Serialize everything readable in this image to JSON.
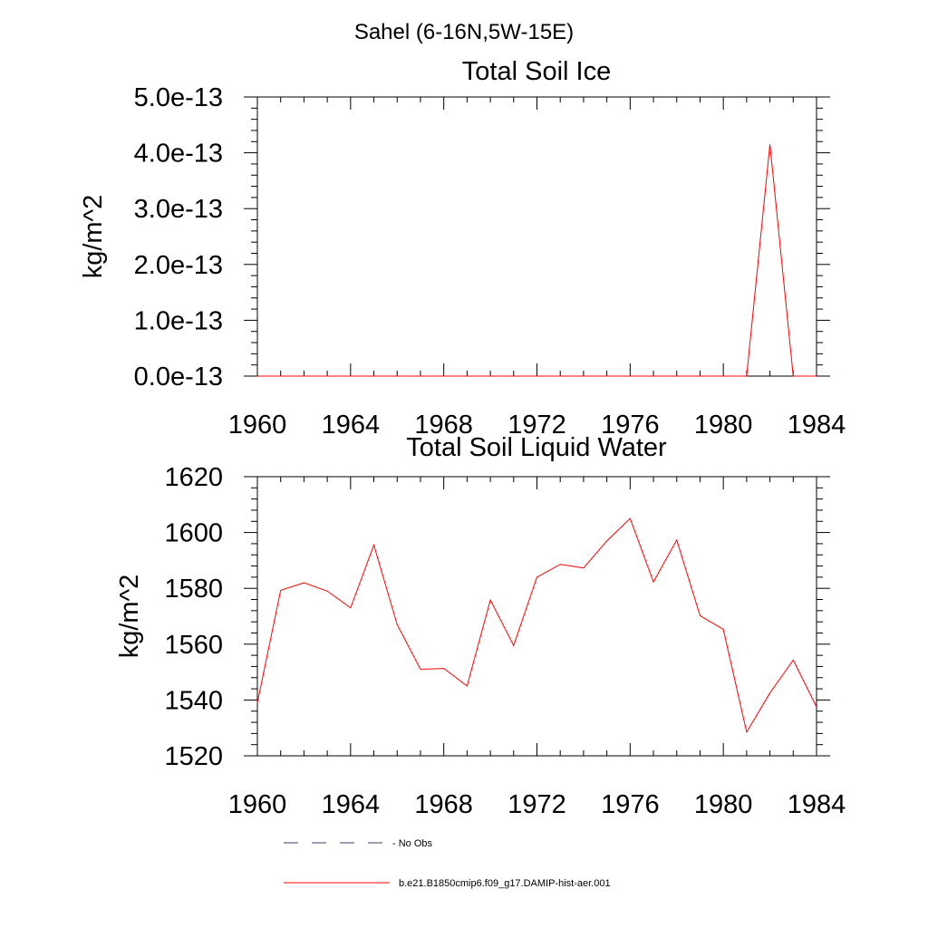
{
  "figure": {
    "title": "Sahel (6-16N,5W-15E)"
  },
  "legend": {
    "items": [
      {
        "label": "- No Obs",
        "color": "#3b3b6e",
        "style": "dashed"
      },
      {
        "label": "b.e21.B1850cmip6.f09_g17.DAMIP-hist-aer.001",
        "color": "#ff0000",
        "style": "solid"
      }
    ]
  },
  "chart_data": [
    {
      "type": "line",
      "title": "Total Soil Ice",
      "ylabel": "kg/m^2",
      "xlabel": "",
      "xlim": [
        1960,
        1984
      ],
      "ylim": [
        0,
        5e-13
      ],
      "xticks": [
        1960,
        1964,
        1968,
        1972,
        1976,
        1980,
        1984
      ],
      "yticks": [
        0,
        1e-13,
        2e-13,
        3e-13,
        4e-13,
        5e-13
      ],
      "ytick_labels": [
        "0.0e-13",
        "1.0e-13",
        "2.0e-13",
        "3.0e-13",
        "4.0e-13",
        "5.0e-13"
      ],
      "grid": false,
      "series": [
        {
          "color": "#ff0000",
          "x": [
            1960,
            1961,
            1962,
            1963,
            1964,
            1965,
            1966,
            1967,
            1968,
            1969,
            1970,
            1971,
            1972,
            1973,
            1974,
            1975,
            1976,
            1977,
            1978,
            1979,
            1980,
            1981,
            1982,
            1983,
            1984
          ],
          "values": [
            0,
            0,
            0,
            0,
            0,
            0,
            0,
            0,
            0,
            0,
            0,
            0,
            0,
            0,
            0,
            0,
            0,
            0,
            0,
            0,
            0,
            0,
            4.15e-13,
            0,
            0
          ]
        }
      ]
    },
    {
      "type": "line",
      "title": "Total Soil Liquid Water",
      "ylabel": "kg/m^2",
      "xlabel": "",
      "xlim": [
        1960,
        1984
      ],
      "ylim": [
        1520,
        1620
      ],
      "xticks": [
        1960,
        1964,
        1968,
        1972,
        1976,
        1980,
        1984
      ],
      "yticks": [
        1520,
        1540,
        1560,
        1580,
        1600,
        1620
      ],
      "ytick_labels": [
        "1520",
        "1540",
        "1560",
        "1580",
        "1600",
        "1620"
      ],
      "grid": false,
      "series": [
        {
          "color": "#ff0000",
          "x": [
            1960,
            1961,
            1962,
            1963,
            1964,
            1965,
            1966,
            1967,
            1968,
            1969,
            1970,
            1971,
            1972,
            1973,
            1974,
            1975,
            1976,
            1977,
            1978,
            1979,
            1980,
            1981,
            1982,
            1983,
            1984
          ],
          "values": [
            1539,
            1579.3,
            1582,
            1579,
            1573,
            1595.5,
            1567,
            1551,
            1551.3,
            1545,
            1575.8,
            1559.5,
            1584,
            1588.6,
            1587.3,
            1597,
            1605,
            1582.3,
            1597.3,
            1570.2,
            1565.3,
            1528.5,
            1542.5,
            1554.3,
            1537.5
          ]
        }
      ]
    }
  ]
}
